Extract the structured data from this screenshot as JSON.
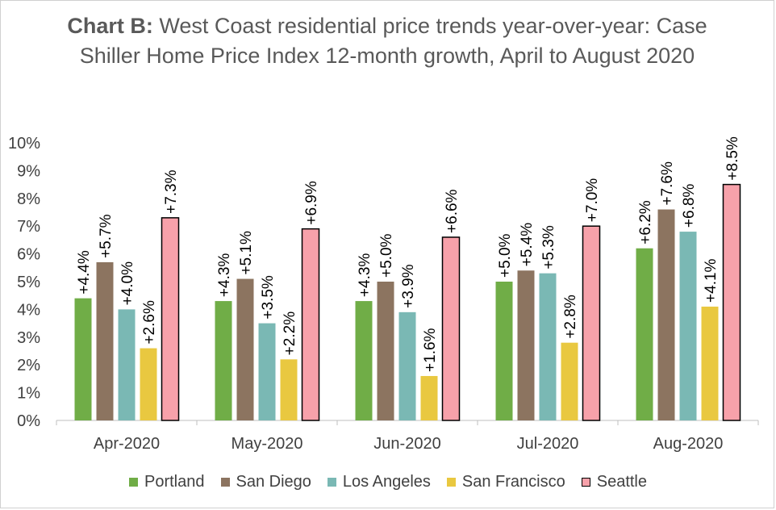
{
  "chart_data": {
    "type": "bar",
    "title_prefix": "Chart B:",
    "title": "West Coast residential price trends year-over-year: Case Shiller Home Price Index 12-month growth, April to August 2020",
    "xlabel": "",
    "ylabel": "",
    "categories": [
      "Apr-2020",
      "May-2020",
      "Jun-2020",
      "Jul-2020",
      "Aug-2020"
    ],
    "ylim": [
      0,
      10
    ],
    "y_ticks": [
      "0%",
      "1%",
      "2%",
      "3%",
      "4%",
      "5%",
      "6%",
      "7%",
      "8%",
      "9%",
      "10%"
    ],
    "grid": false,
    "legend_position": "bottom",
    "series": [
      {
        "name": "Portland",
        "color": "#70ad47",
        "values": [
          4.4,
          4.3,
          4.3,
          5.0,
          6.2
        ],
        "labels": [
          "+4.4%",
          "+4.3%",
          "+4.3%",
          "+5.0%",
          "+6.2%"
        ]
      },
      {
        "name": "San Diego",
        "color": "#8c7460",
        "values": [
          5.7,
          5.1,
          5.0,
          5.4,
          7.6
        ],
        "labels": [
          "+5.7%",
          "+5.1%",
          "+5.0%",
          "+5.4%",
          "+7.6%"
        ]
      },
      {
        "name": "Los Angeles",
        "color": "#7ab8b4",
        "values": [
          4.0,
          3.5,
          3.9,
          5.3,
          6.8
        ],
        "labels": [
          "+4.0%",
          "+3.5%",
          "+3.9%",
          "+5.3%",
          "+6.8%"
        ]
      },
      {
        "name": "San Francisco",
        "color": "#e9c840",
        "values": [
          2.6,
          2.2,
          1.6,
          2.8,
          4.1
        ],
        "labels": [
          "+2.6%",
          "+2.2%",
          "+1.6%",
          "+2.8%",
          "+4.1%"
        ]
      },
      {
        "name": "Seattle",
        "color": "#f7a1aa",
        "outline": "#000000",
        "values": [
          7.3,
          6.9,
          6.6,
          7.0,
          8.5
        ],
        "labels": [
          "+7.3%",
          "+6.9%",
          "+6.6%",
          "+7.0%",
          "+8.5%"
        ]
      }
    ]
  }
}
